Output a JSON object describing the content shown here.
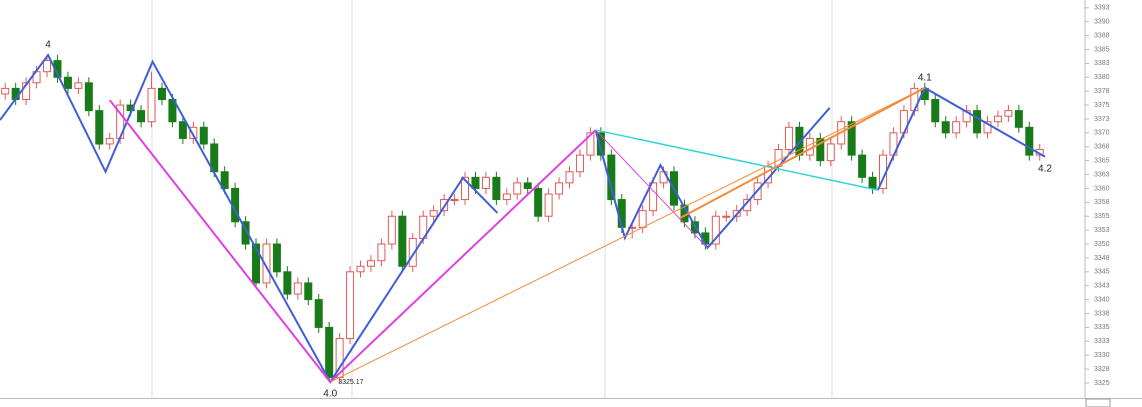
{
  "chart_data": {
    "type": "candlestick",
    "xlim": [
      -0.5,
      104
    ],
    "ylim": [
      3322.3,
      3393.9
    ],
    "yticks": [
      3325,
      {
        "value": 3327.5,
        "label": "3328"
      },
      3330,
      {
        "value": 3332.5,
        "label": "3333"
      },
      3335,
      {
        "value": 3337.5,
        "label": "3338"
      },
      3340,
      {
        "value": 3342.5,
        "label": "3343"
      },
      3345,
      {
        "value": 3347.5,
        "label": "3348"
      },
      3350,
      {
        "value": 3352.5,
        "label": "3353"
      },
      3355,
      {
        "value": 3357.5,
        "label": "3358"
      },
      3360,
      {
        "value": 3362.5,
        "label": "3363"
      },
      3365,
      {
        "value": 3367.5,
        "label": "3368"
      },
      3370,
      {
        "value": 3372.5,
        "label": "3373"
      },
      3375,
      {
        "value": 3377.5,
        "label": "3378"
      },
      3380,
      {
        "value": 3382.5,
        "label": "3383"
      },
      3385,
      {
        "value": 3387.5,
        "label": "3388"
      },
      3390,
      {
        "value": 3392.5,
        "label": "3393"
      }
    ],
    "up_color": "#e05a5a",
    "down_color": "#187a18",
    "open": [
      3377,
      3378,
      3376,
      3379,
      3381,
      3383,
      3380,
      3378,
      3379,
      3374,
      3368,
      3369,
      3375,
      3374,
      3372,
      3378,
      3376,
      3372,
      3369,
      3371,
      3368,
      3363,
      3360,
      3354,
      3350,
      3343,
      3350,
      3345,
      3341,
      3343,
      3340,
      3335,
      3326,
      3333,
      3345,
      3346,
      3347,
      3350,
      3355,
      3346,
      3351,
      3355,
      3356,
      3358,
      3358,
      3362,
      3360,
      3362,
      3358,
      3359,
      3361,
      3360,
      3355,
      3359,
      3361,
      3363,
      3366,
      3370,
      3366,
      3358,
      3353,
      3353,
      3356,
      3361,
      3363,
      3357,
      3354,
      3352,
      3350,
      3355,
      3355,
      3356,
      3358,
      3361,
      3364,
      3367,
      3371,
      3366,
      3369,
      3365,
      3368,
      3372,
      3366,
      3362,
      3360,
      3366,
      3370,
      3374,
      3378,
      3376,
      3372,
      3370,
      3372,
      3374,
      3370,
      3372,
      3373,
      3374,
      3371,
      3366
    ],
    "close": [
      3378,
      3376,
      3379,
      3381,
      3383,
      3380,
      3378,
      3379,
      3374,
      3368,
      3369,
      3375,
      3374,
      3372,
      3378,
      3376,
      3372,
      3369,
      3371,
      3368,
      3363,
      3360,
      3354,
      3350,
      3343,
      3350,
      3345,
      3341,
      3343,
      3340,
      3335,
      3326,
      3333,
      3345,
      3346,
      3347,
      3350,
      3355,
      3346,
      3351,
      3355,
      3356,
      3358,
      3358,
      3362,
      3360,
      3362,
      3358,
      3359,
      3361,
      3360,
      3355,
      3359,
      3361,
      3363,
      3366,
      3370,
      3366,
      3358,
      3353,
      3353,
      3356,
      3361,
      3363,
      3357,
      3354,
      3352,
      3350,
      3355,
      3355,
      3356,
      3358,
      3361,
      3364,
      3367,
      3371,
      3366,
      3369,
      3365,
      3368,
      3372,
      3366,
      3362,
      3360,
      3366,
      3370,
      3374,
      3378,
      3376,
      3372,
      3370,
      3372,
      3374,
      3370,
      3372,
      3373,
      3374,
      3371,
      3366,
      3367
    ],
    "high": [
      3379,
      3379,
      3380,
      3382,
      3384,
      3384,
      3381,
      3380,
      3380,
      3375,
      3370,
      3376,
      3376,
      3375,
      3381,
      3379,
      3377,
      3373,
      3372,
      3372,
      3369,
      3364,
      3361,
      3355,
      3351,
      3351,
      3351,
      3346,
      3344,
      3344,
      3341,
      3336,
      3334,
      3346,
      3347,
      3348,
      3351,
      3356,
      3356,
      3352,
      3356,
      3357,
      3359,
      3359,
      3363,
      3363,
      3363,
      3363,
      3360,
      3362,
      3362,
      3361,
      3360,
      3362,
      3364,
      3367,
      3371,
      3371,
      3367,
      3359,
      3354,
      3357,
      3362,
      3364,
      3364,
      3358,
      3355,
      3353,
      3356,
      3356,
      3357,
      3359,
      3362,
      3365,
      3368,
      3372,
      3372,
      3370,
      3370,
      3369,
      3373,
      3373,
      3367,
      3363,
      3367,
      3371,
      3375,
      3379,
      3379,
      3377,
      3373,
      3373,
      3375,
      3375,
      3373,
      3374,
      3375,
      3375,
      3372,
      3368
    ],
    "low": [
      3376,
      3375,
      3375,
      3378,
      3380,
      3379,
      3377,
      3377,
      3373,
      3367,
      3367,
      3368,
      3373,
      3371,
      3371,
      3375,
      3371,
      3368,
      3368,
      3367,
      3362,
      3359,
      3353,
      3349,
      3342,
      3342,
      3344,
      3340,
      3340,
      3339,
      3334,
      3325.17,
      3325,
      3332,
      3344,
      3345,
      3346,
      3349,
      3345,
      3345,
      3350,
      3354,
      3355,
      3357,
      3357,
      3359,
      3359,
      3357,
      3357,
      3358,
      3359,
      3354,
      3354,
      3358,
      3360,
      3362,
      3365,
      3365,
      3357,
      3352,
      3351,
      3352,
      3355,
      3360,
      3356,
      3353,
      3351,
      3349,
      3349,
      3354,
      3354,
      3355,
      3357,
      3360,
      3363,
      3366,
      3365,
      3365,
      3364,
      3364,
      3367,
      3365,
      3361,
      3359,
      3359,
      3365,
      3369,
      3373,
      3375,
      3371,
      3369,
      3369,
      3371,
      3369,
      3369,
      3371,
      3372,
      3370,
      3365,
      3365
    ],
    "lines": [
      {
        "color": "#3f5fd6",
        "width": 2,
        "x": [
          -0.5,
          4.1,
          9.6,
          14.1,
          31.1,
          43.8,
          47.1,
          null,
          56.5,
          59.3,
          62.7,
          67.2,
          78.9,
          null,
          83.5,
          88,
          99.5
        ],
        "values": [
          3372.3,
          3384,
          3363,
          3382.8,
          3325.17,
          3361.9,
          3355.6,
          null,
          3370.5,
          3351.1,
          3364.2,
          3349.3,
          3374.5,
          null,
          3359.7,
          3378.1,
          3365.7
        ]
      },
      {
        "color": "#e040e0",
        "width": 2,
        "x": [
          10,
          31.1,
          56.5
        ],
        "values": [
          3375.9,
          3325.17,
          3370.5
        ]
      },
      {
        "color": "#e040e0",
        "width": 1,
        "x": [
          56.5,
          67.2
        ],
        "values": [
          3370.5,
          3349.3
        ]
      },
      {
        "color": "#33d6d6",
        "width": 1.5,
        "x": [
          56.5,
          83.5
        ],
        "values": [
          3370.5,
          3359.7
        ]
      },
      {
        "color": "#f28c3c",
        "width": 1,
        "x": [
          31.1,
          88
        ],
        "values": [
          3325.17,
          3378.1
        ]
      },
      {
        "color": "#f28c3c",
        "width": 2,
        "x": [
          64.6,
          88
        ],
        "values": [
          3354.7,
          3378.1
        ]
      }
    ],
    "annotations": [
      {
        "text": "4",
        "x": 4.1,
        "y": 3384,
        "pos": "above"
      },
      {
        "text": "4.0",
        "x": 31.1,
        "y": 3325.17,
        "pos": "below"
      },
      {
        "text": "3325.17",
        "x": 31.1,
        "y": 3325.17,
        "pos": "right"
      },
      {
        "text": "4.1",
        "x": 88,
        "y": 3378.1,
        "pos": "above"
      },
      {
        "text": "4.2",
        "x": 99.5,
        "y": 3365.7,
        "pos": "below"
      }
    ]
  }
}
